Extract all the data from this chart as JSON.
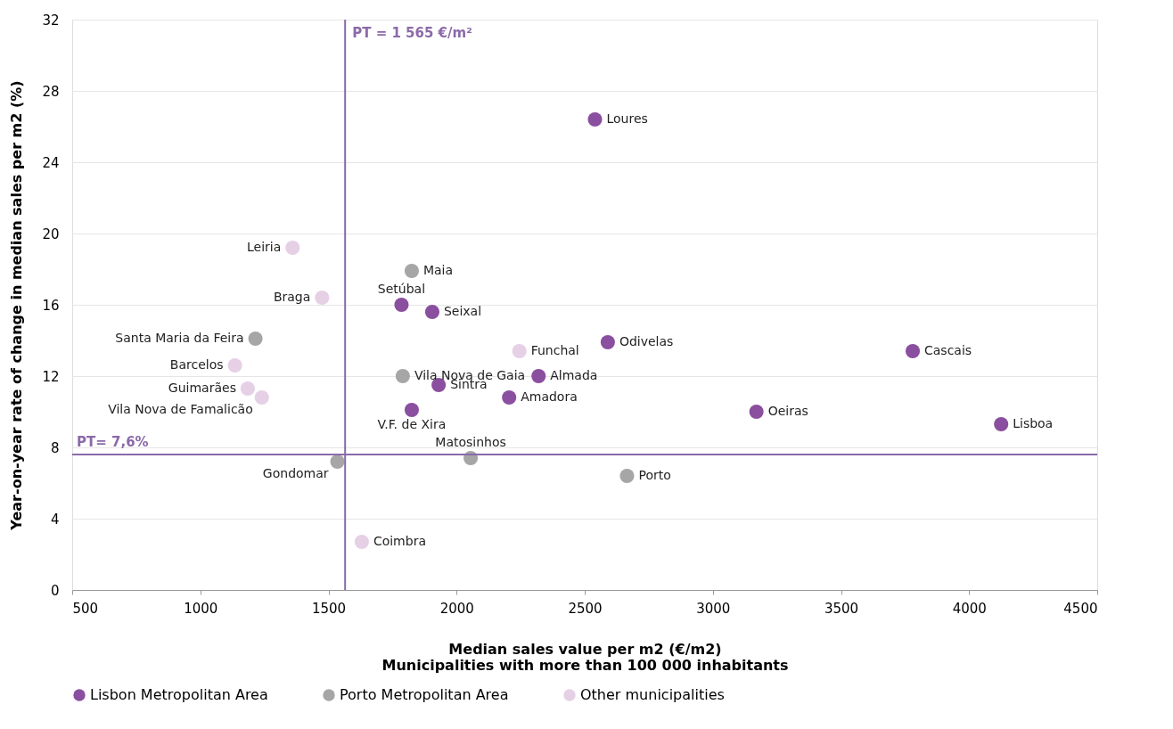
{
  "chart_data": {
    "type": "scatter",
    "xlabel": "Median sales value per m2 (€/m2)\nMunicipalities with more than 100 000 inhabitants",
    "ylabel": "Year-on-year rate of change in median sales per m2 (%)",
    "xlim": [
      500,
      4500
    ],
    "xticks": [
      500,
      {
        "value": 1000,
        "label": "1000"
      },
      {
        "value": 1500,
        "label": "1500"
      },
      {
        "value": 2000,
        "label": "2000"
      },
      {
        "value": 2500,
        "label": "2500"
      },
      {
        "value": 3000,
        "label": "3000"
      },
      {
        "value": 3500,
        "label": "3500"
      },
      {
        "value": 4000,
        "label": "4000"
      },
      {
        "value": 4500,
        "label": "4500"
      }
    ],
    "ylim": [
      0,
      32
    ],
    "yticks": [
      0,
      4,
      8,
      12,
      16,
      20,
      24,
      28,
      32
    ],
    "grid": "y",
    "legend": "bottom",
    "marker": "circle",
    "series": [
      {
        "name": "Lisbon Metropolitan Area",
        "color": "#8b4f9f",
        "x": [
          2540,
          1785,
          1905,
          2590,
          3780,
          2320,
          1930,
          2205,
          1825,
          3170,
          4125
        ],
        "values": [
          26.4,
          16.0,
          15.6,
          13.9,
          13.4,
          12.0,
          11.5,
          10.8,
          10.1,
          10.0,
          9.3
        ]
      },
      {
        "name": "Porto Metropolitan Area",
        "color": "#a6a6a6",
        "x": [
          1825,
          1215,
          1790,
          1535,
          2055,
          2665
        ],
        "values": [
          17.9,
          14.1,
          12.0,
          7.2,
          7.4,
          6.4
        ]
      },
      {
        "name": "Other municipalities",
        "color": "#e6d0e6",
        "x": [
          1360,
          1475,
          2245,
          1135,
          1185,
          1240,
          1630
        ],
        "values": [
          19.2,
          16.4,
          13.4,
          12.6,
          11.3,
          10.8,
          2.7
        ]
      }
    ],
    "ref_lines": [
      {
        "axis": "x",
        "value": 1565,
        "label": "PT = 1 565 €/m²",
        "color": "#8b6aa8"
      },
      {
        "axis": "y",
        "value": 7.6,
        "label": "PT= 7,6%",
        "color": "#8b6aa8"
      }
    ],
    "annotations": [
      {
        "text": "Loures",
        "x": 2540,
        "y": 26.4
      },
      {
        "text": "Setúbal",
        "x": 1785,
        "y": 16.0
      },
      {
        "text": "Seixal",
        "x": 1905,
        "y": 15.6
      },
      {
        "text": "Odivelas",
        "x": 2590,
        "y": 13.9
      },
      {
        "text": "Cascais",
        "x": 3780,
        "y": 13.4
      },
      {
        "text": "Almada",
        "x": 2320,
        "y": 12.0
      },
      {
        "text": "Sintra",
        "x": 1930,
        "y": 11.5
      },
      {
        "text": "Amadora",
        "x": 2205,
        "y": 10.8
      },
      {
        "text": "V.F. de Xira",
        "x": 1825,
        "y": 10.1
      },
      {
        "text": "Oeiras",
        "x": 3170,
        "y": 10.0
      },
      {
        "text": "Lisboa",
        "x": 4125,
        "y": 9.3
      },
      {
        "text": "Maia",
        "x": 1825,
        "y": 17.9
      },
      {
        "text": "Santa Maria da Feira",
        "x": 1215,
        "y": 14.1
      },
      {
        "text": "Vila Nova de Gaia",
        "x": 1790,
        "y": 12.0
      },
      {
        "text": "Gondomar",
        "x": 1535,
        "y": 7.2
      },
      {
        "text": "Matosinhos",
        "x": 2055,
        "y": 7.4
      },
      {
        "text": "Porto",
        "x": 2665,
        "y": 6.4
      },
      {
        "text": "Leiria",
        "x": 1360,
        "y": 19.2
      },
      {
        "text": "Braga",
        "x": 1475,
        "y": 16.4
      },
      {
        "text": "Funchal",
        "x": 2245,
        "y": 13.4
      },
      {
        "text": "Barcelos",
        "x": 1135,
        "y": 12.6
      },
      {
        "text": "Guimarães",
        "x": 1185,
        "y": 11.3
      },
      {
        "text": "Vila Nova de Famalicão",
        "x": 1240,
        "y": 10.8
      },
      {
        "text": "Coimbra",
        "x": 1630,
        "y": 2.7
      }
    ]
  }
}
